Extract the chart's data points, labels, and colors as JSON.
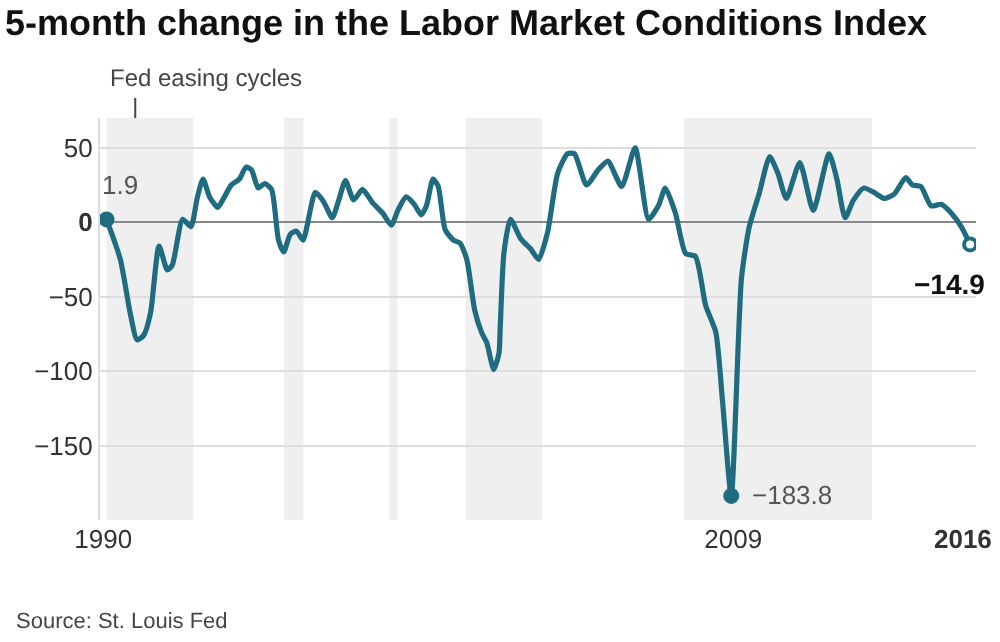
{
  "chart_data": {
    "type": "line",
    "title": "5-month change in the Labor Market Conditions Index",
    "series": [
      {
        "color": "#1f6b80",
        "x": [
          1990.1,
          1990.52,
          1990.82,
          1991.03,
          1991.23,
          1991.44,
          1991.7,
          1991.95,
          1992.1,
          1992.42,
          1992.67,
          1992.87,
          1993.04,
          1993.24,
          1993.49,
          1993.69,
          1993.9,
          1994.15,
          1994.35,
          1994.52,
          1994.72,
          1994.92,
          1995.13,
          1995.34,
          1995.5,
          1995.7,
          1995.89,
          1996.09,
          1996.46,
          1996.71,
          1996.98,
          1997.18,
          1997.38,
          1997.63,
          1997.9,
          1998.21,
          1998.52,
          1998.78,
          1998.98,
          1999.23,
          1999.48,
          1999.69,
          1999.85,
          2000.05,
          2000.21,
          2000.42,
          2000.67,
          2000.87,
          2001.08,
          2001.32,
          2001.53,
          2001.69,
          2001.9,
          2002.06,
          2002.1,
          2002.21,
          2002.41,
          2002.72,
          2003.03,
          2003.27,
          2003.54,
          2003.85,
          2004.15,
          2004.36,
          2004.73,
          2005.08,
          2005.38,
          2005.8,
          2006.21,
          2006.62,
          2006.92,
          2007.13,
          2007.44,
          2007.75,
          2008.05,
          2008.36,
          2008.67,
          2008.87,
          2009.14,
          2009.45,
          2009.69,
          2010.0,
          2010.31,
          2010.56,
          2010.82,
          2011.23,
          2011.64,
          2012.12,
          2012.36,
          2012.61,
          2012.87,
          2013.18,
          2013.49,
          2013.8,
          2014.11,
          2014.46,
          2014.66,
          2014.92,
          2015.23,
          2015.54,
          2015.85,
          2016.15,
          2016.42
        ],
        "values": [
          1.9,
          -25,
          -61,
          -79,
          -76,
          -61,
          -16,
          -32,
          -29,
          2,
          -3,
          17,
          29,
          17,
          10,
          17,
          25,
          29,
          37,
          35,
          23,
          26,
          22,
          -12,
          -20,
          -8,
          -6,
          -12,
          20,
          14,
          3,
          15,
          28,
          15,
          22,
          13,
          6,
          -2,
          8,
          17,
          12,
          5,
          11,
          29,
          24,
          -5,
          -12,
          -14,
          -25,
          -59,
          -74,
          -81,
          -99,
          -88,
          -70,
          -21,
          2,
          -11,
          -18,
          -25,
          -7,
          33,
          46,
          46,
          25,
          35,
          41,
          24,
          50,
          2,
          11,
          23,
          6,
          -21,
          -23,
          -56,
          -74,
          -119,
          -183.8,
          -38,
          -3,
          20,
          44,
          33,
          16,
          40,
          8,
          46,
          29,
          3,
          15,
          23,
          20,
          16,
          19,
          30,
          25,
          24,
          11,
          12,
          6,
          -3,
          -14.9
        ]
      },
      {
        "type": "scatter",
        "color": "#1f6b80",
        "x": [
          1990.1,
          2009.14,
          2016.42
        ],
        "values": [
          1.9,
          -183.8,
          -14.9
        ],
        "marker": "circle"
      }
    ],
    "xlim": [
      1989.9,
      2016.6
    ],
    "xticks": [
      {
        "value": 1990,
        "label": "1990"
      },
      {
        "value": 2009.2,
        "label": "2009"
      },
      {
        "value": 2016.2,
        "label": "2016"
      }
    ],
    "ylim": [
      -200,
      70
    ],
    "yticks": [
      -150,
      -100,
      -50,
      0,
      50
    ],
    "grid": "y",
    "line_style": "solid",
    "marker": "none",
    "bands": [
      {
        "axis": "x",
        "from": 1990.1,
        "to": 1992.75,
        "label": "Fed easing cycles",
        "color": "#efefef"
      },
      {
        "axis": "x",
        "from": 1995.5,
        "to": 1996.1,
        "color": "#efefef"
      },
      {
        "axis": "x",
        "from": 1998.72,
        "to": 1998.97,
        "color": "#efefef"
      },
      {
        "axis": "x",
        "from": 2001.04,
        "to": 2003.38,
        "color": "#efefef"
      },
      {
        "axis": "x",
        "from": 2007.7,
        "to": 2013.43,
        "color": "#efefef"
      }
    ],
    "annotations": [
      {
        "text": "1.9",
        "x": 1990.1,
        "y": 1.9
      },
      {
        "text": "−183.8",
        "x": 2009.14,
        "y": -183.8
      },
      {
        "text": "−14.9",
        "x": 2016.42,
        "y": -14.9
      },
      "Source: St. Louis Fed"
    ]
  }
}
